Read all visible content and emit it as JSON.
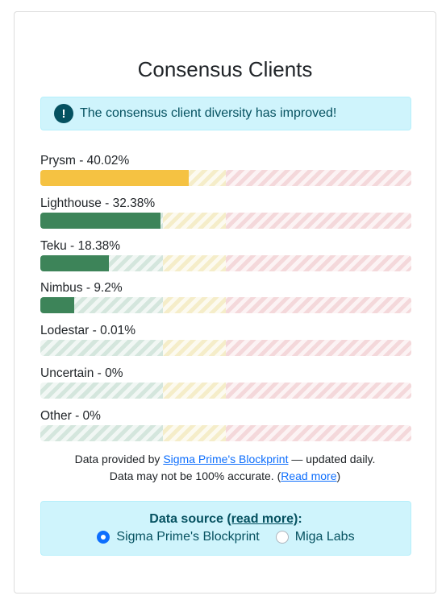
{
  "title": "Consensus Clients",
  "alert": {
    "icon": "exclamation-icon",
    "text": "The consensus client diversity has improved!"
  },
  "clients": [
    {
      "label": "Prysm - 40.02%",
      "percent": 40.02,
      "color": "#f5c242"
    },
    {
      "label": "Lighthouse - 32.38%",
      "percent": 32.38,
      "color": "#3d8459"
    },
    {
      "label": "Teku - 18.38%",
      "percent": 18.38,
      "color": "#3d8459"
    },
    {
      "label": "Nimbus - 9.2%",
      "percent": 9.2,
      "color": "#3d8459"
    },
    {
      "label": "Lodestar - 0.01%",
      "percent": 0.01,
      "color": "#3d8459"
    },
    {
      "label": "Uncertain - 0%",
      "percent": 0,
      "color": "#3d8459"
    },
    {
      "label": "Other - 0%",
      "percent": 0,
      "color": "#3d8459"
    }
  ],
  "footnote": {
    "line1_prefix": "Data provided by ",
    "line1_link": "Sigma Prime's Blockprint",
    "line1_suffix": " — updated daily.",
    "line2_prefix": "Data may not be 100% accurate. (",
    "line2_link": "Read more",
    "line2_suffix": ")"
  },
  "data_source": {
    "title_prefix": "Data source ",
    "title_link": "(read more)",
    "title_suffix": ":",
    "options": [
      {
        "label": "Sigma Prime's Blockprint",
        "checked": true
      },
      {
        "label": "Miga Labs",
        "checked": false
      }
    ]
  }
}
